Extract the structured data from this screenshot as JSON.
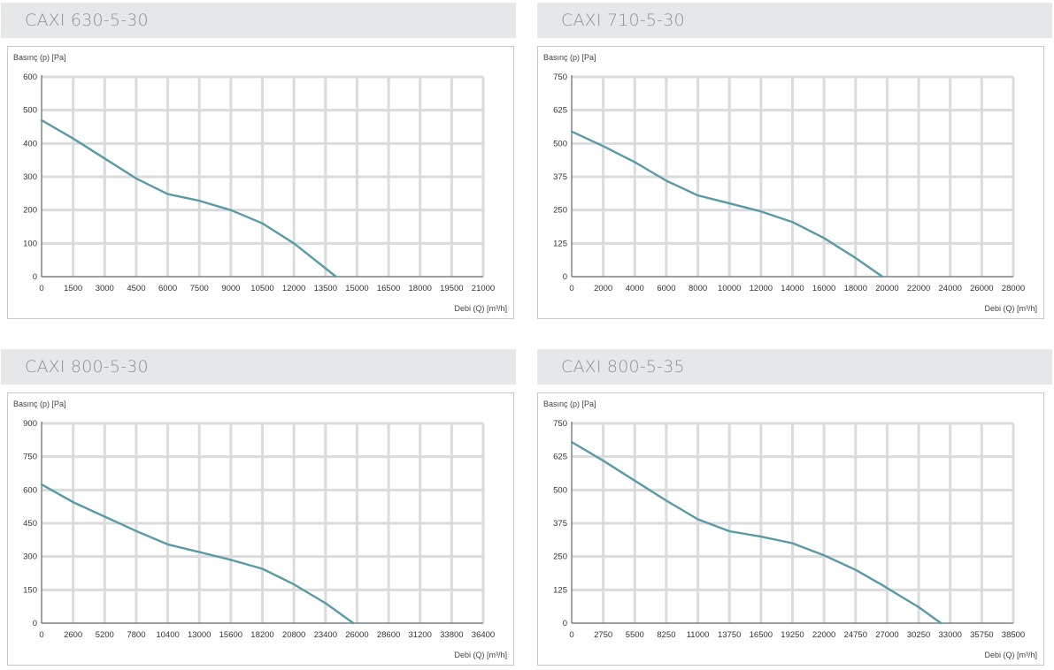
{
  "accent_color": "#5a9aa6",
  "chart_data": [
    {
      "type": "line",
      "title": "CAXI 630-5-30",
      "ylabel": "Basınç (p) [Pa]",
      "xlabel": "Debi (Q) [m³/h]",
      "x_ticks": [
        "0",
        "1500",
        "3000",
        "4500",
        "6000",
        "7500",
        "9000",
        "10500",
        "12000",
        "13500",
        "15000",
        "16500",
        "18000",
        "19500",
        "21000"
      ],
      "y_ticks": [
        "0",
        "100",
        "200",
        "300",
        "400",
        "500",
        "600"
      ],
      "xlim": [
        0,
        21000
      ],
      "ylim": [
        0,
        600
      ],
      "series": [
        {
          "x": [
            0,
            1500,
            3000,
            4500,
            6000,
            7500,
            9000,
            10500,
            12000,
            13500,
            14000
          ],
          "y": [
            470,
            415,
            355,
            295,
            248,
            228,
            200,
            160,
            100,
            25,
            0
          ]
        }
      ]
    },
    {
      "type": "line",
      "title": "CAXI 710-5-30",
      "ylabel": "Basınç (p) [Pa]",
      "xlabel": "Debi (Q) [m³/h]",
      "x_ticks": [
        "0",
        "2000",
        "4000",
        "6000",
        "8000",
        "10000",
        "12000",
        "14000",
        "16000",
        "18000",
        "20000",
        "22000",
        "24000",
        "26000",
        "28000"
      ],
      "y_ticks": [
        "0",
        "125",
        "250",
        "375",
        "500",
        "625",
        "750"
      ],
      "xlim": [
        0,
        28000
      ],
      "ylim": [
        0,
        750
      ],
      "series": [
        {
          "x": [
            0,
            2000,
            4000,
            6000,
            8000,
            10000,
            12000,
            14000,
            16000,
            18000,
            19700
          ],
          "y": [
            545,
            490,
            430,
            360,
            305,
            275,
            245,
            205,
            145,
            70,
            0
          ]
        }
      ]
    },
    {
      "type": "line",
      "title": "CAXI 800-5-30",
      "ylabel": "Basınç (p) [Pa]",
      "xlabel": "Debi (Q) [m³/h]",
      "x_ticks": [
        "0",
        "2600",
        "5200",
        "7800",
        "10400",
        "13000",
        "15600",
        "18200",
        "20800",
        "23400",
        "26000",
        "28600",
        "31200",
        "33800",
        "36400"
      ],
      "y_ticks": [
        "0",
        "150",
        "300",
        "450",
        "600",
        "750",
        "900"
      ],
      "xlim": [
        0,
        36400
      ],
      "ylim": [
        0,
        900
      ],
      "series": [
        {
          "x": [
            0,
            2600,
            5200,
            7800,
            10400,
            13000,
            15600,
            18200,
            20800,
            23400,
            25700
          ],
          "y": [
            625,
            545,
            480,
            415,
            355,
            320,
            285,
            245,
            175,
            90,
            0
          ]
        }
      ]
    },
    {
      "type": "line",
      "title": "CAXI 800-5-35",
      "ylabel": "Basınç (p) [Pa]",
      "xlabel": "Debi (Q) [m³/h]",
      "x_ticks": [
        "0",
        "2750",
        "5500",
        "8250",
        "11000",
        "13750",
        "16500",
        "19250",
        "22000",
        "24750",
        "27000",
        "30250",
        "33000",
        "35750",
        "38500"
      ],
      "y_ticks": [
        "0",
        "125",
        "250",
        "375",
        "500",
        "625",
        "750"
      ],
      "xlim": [
        0,
        38500
      ],
      "ylim": [
        0,
        750
      ],
      "series": [
        {
          "x": [
            0,
            2750,
            5500,
            8250,
            11000,
            13750,
            16500,
            19250,
            22000,
            24750,
            27000,
            30250,
            32200
          ],
          "y": [
            680,
            610,
            535,
            460,
            390,
            345,
            325,
            300,
            255,
            200,
            145,
            60,
            0
          ]
        }
      ]
    }
  ]
}
